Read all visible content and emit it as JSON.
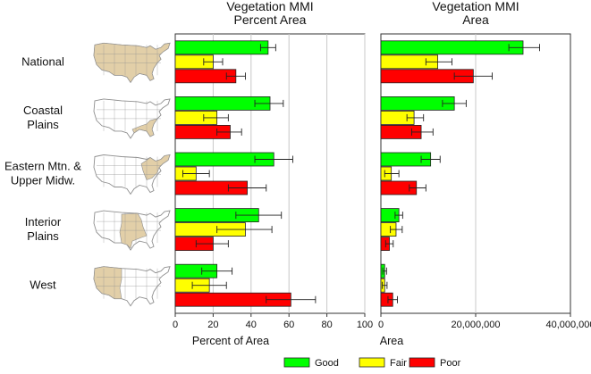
{
  "colors": {
    "good": "#00ff00",
    "fair": "#ffff00",
    "poor": "#ff0000",
    "map_fill": "#e2cfa8",
    "map_stroke": "#8f8f8f"
  },
  "chart_data": [
    {
      "type": "bar",
      "orientation": "horizontal",
      "title": "Vegetation MMI\nPercent Area",
      "xlabel": "Percent of Area",
      "xlim": [
        0,
        100
      ],
      "xticks": [
        "0",
        "20",
        "40",
        "60",
        "80",
        "100"
      ],
      "grid": true,
      "categories": [
        "National",
        "Coastal\nPlains",
        "Eastern Mtn. &\nUpper Midw.",
        "Interior\nPlains",
        "West"
      ],
      "series": [
        {
          "name": "Good",
          "values": [
            49,
            50,
            52,
            44,
            22
          ],
          "error_low": [
            45,
            42,
            42,
            32,
            14
          ],
          "error_high": [
            53,
            57,
            62,
            56,
            30
          ]
        },
        {
          "name": "Fair",
          "values": [
            20,
            22,
            11,
            37,
            18
          ],
          "error_low": [
            15,
            15,
            4,
            22,
            9
          ],
          "error_high": [
            25,
            28,
            18,
            51,
            27
          ]
        },
        {
          "name": "Poor",
          "values": [
            32,
            29,
            38,
            20,
            61
          ],
          "error_low": [
            27,
            22,
            28,
            11,
            48
          ],
          "error_high": [
            37,
            35,
            48,
            28,
            74
          ]
        }
      ]
    },
    {
      "type": "bar",
      "orientation": "horizontal",
      "title": "Vegetation MMI\nArea",
      "xlabel": "Area",
      "xlim": [
        0,
        40000000
      ],
      "xticks": [
        "0",
        "20,000,000",
        "40,000,000"
      ],
      "grid": true,
      "categories": [
        "National",
        "Coastal\nPlains",
        "Eastern Mtn. &\nUpper Midw.",
        "Interior\nPlains",
        "West"
      ],
      "series": [
        {
          "name": "Good",
          "values": [
            30000000,
            15500000,
            10500000,
            3800000,
            800000
          ],
          "error_low": [
            27000000,
            13000000,
            8500000,
            3000000,
            400000
          ],
          "error_high": [
            33500000,
            18000000,
            12500000,
            4600000,
            1200000
          ]
        },
        {
          "name": "Fair",
          "values": [
            12000000,
            7000000,
            2200000,
            3200000,
            800000
          ],
          "error_low": [
            9500000,
            5500000,
            800000,
            2000000,
            300000
          ],
          "error_high": [
            15000000,
            9000000,
            3800000,
            4500000,
            1300000
          ]
        },
        {
          "name": "Poor",
          "values": [
            19500000,
            8500000,
            7500000,
            1800000,
            2500000
          ],
          "error_low": [
            15500000,
            6500000,
            6000000,
            1000000,
            1500000
          ],
          "error_high": [
            23500000,
            11000000,
            9500000,
            2600000,
            3500000
          ]
        }
      ]
    }
  ],
  "legend": {
    "items": [
      "Good",
      "Fair",
      "Poor"
    ]
  }
}
